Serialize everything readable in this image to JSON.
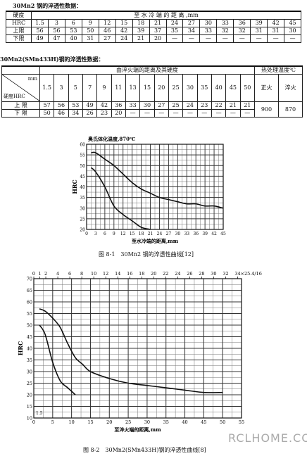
{
  "table1": {
    "title": "30Mn2 钢的淬透性数据：",
    "col_header": "至 水 冷 端 的 距 离 ,mm",
    "hardness_label": "硬度",
    "hrc_label": "HRC",
    "distances": [
      "1.5",
      "3",
      "6",
      "9",
      "12",
      "15",
      "18",
      "21",
      "24",
      "27",
      "30",
      "33",
      "36",
      "39",
      "42",
      "45"
    ],
    "rows": [
      {
        "label": "上限",
        "values": [
          "56",
          "56",
          "53",
          "50",
          "46",
          "42",
          "39",
          "37",
          "35",
          "34",
          "33",
          "32",
          "32",
          "31",
          "31",
          "30"
        ]
      },
      {
        "label": "下限",
        "values": [
          "49",
          "47",
          "40",
          "31",
          "27",
          "24",
          "21",
          "20",
          "—",
          "—",
          "—",
          "—",
          "—",
          "—",
          "—",
          "—"
        ]
      }
    ]
  },
  "table2": {
    "title": "30Mn2(SMn433H)钢的淬透性数据：",
    "col_header": "由淬火端的距离及其硬度",
    "mm_label": "mm",
    "hardness_label": "硬度HRC",
    "heat_header": "热处理温度℃",
    "normalize_label": "正火",
    "quench_label": "淬火",
    "normalize_value": "900",
    "quench_value": "870",
    "distances": [
      "1.5",
      "3",
      "5",
      "7",
      "9",
      "11",
      "13",
      "15",
      "20",
      "25",
      "30",
      "35",
      "40",
      "45",
      "50"
    ],
    "rows": [
      {
        "label": "上 限",
        "values": [
          "57",
          "56",
          "53",
          "49",
          "42",
          "36",
          "33",
          "30",
          "27",
          "25",
          "24",
          "23",
          "22",
          "21",
          "21"
        ]
      },
      {
        "label": "下 限",
        "values": [
          "50",
          "46",
          "34",
          "26",
          "23",
          "20",
          "—",
          "—",
          "—",
          "—",
          "—",
          "—",
          "—",
          "—",
          "—"
        ]
      }
    ]
  },
  "chart_data": [
    {
      "type": "line",
      "title": "奥氏体化温度,870℃",
      "xlabel": "至水冷端的距离,mm",
      "ylabel": "HRC",
      "xlim": [
        0,
        45
      ],
      "ylim": [
        20,
        60
      ],
      "x_ticks": [
        0,
        3,
        6,
        9,
        12,
        15,
        18,
        21,
        24,
        27,
        30,
        33,
        36,
        39,
        42,
        45
      ],
      "y_ticks": [
        20,
        25,
        30,
        35,
        40,
        45,
        50,
        55,
        60
      ],
      "grid": true,
      "series": [
        {
          "x": [
            1.5,
            3,
            6,
            9,
            12,
            15,
            18,
            21,
            24,
            27,
            30,
            33,
            36,
            39,
            42,
            45
          ],
          "values": [
            56,
            56,
            53,
            50,
            46,
            42,
            39,
            37,
            35,
            34,
            33,
            32,
            32,
            31,
            31,
            30
          ]
        },
        {
          "x": [
            1.5,
            3,
            6,
            9,
            12,
            15,
            18,
            21
          ],
          "values": [
            49,
            47,
            40,
            31,
            27,
            24,
            21,
            20
          ]
        }
      ],
      "caption": "图 8-1　30Mn2 钢的淬透性曲线[12]"
    },
    {
      "type": "line",
      "xlabel": "至淬火端的距离,mm",
      "ylabel": "HRC",
      "xlim": [
        0,
        55
      ],
      "ylim": [
        10,
        70
      ],
      "x_ticks": [
        0,
        5,
        10,
        15,
        20,
        25,
        30,
        35,
        40,
        45,
        50,
        55
      ],
      "top_ticks": [
        "0",
        "1",
        "2",
        "4",
        "6",
        "8",
        "10",
        "12",
        "14",
        "16",
        "18",
        "20",
        "22",
        "24",
        "26",
        "28",
        "30",
        "32",
        "34"
      ],
      "top_unit": "×25.4/16",
      "y_ticks": [
        10,
        15,
        20,
        25,
        30,
        35,
        40,
        45,
        50,
        55,
        60,
        65,
        70
      ],
      "corner_label": "1.5",
      "grid": true,
      "series": [
        {
          "x": [
            1.5,
            3,
            5,
            7,
            9,
            11,
            13,
            15,
            20,
            25,
            30,
            35,
            40,
            45,
            50
          ],
          "values": [
            57,
            56,
            53,
            49,
            42,
            36,
            33,
            30,
            27,
            25,
            24,
            23,
            22,
            21,
            21
          ]
        },
        {
          "x": [
            1.5,
            3,
            5,
            7,
            9,
            11
          ],
          "values": [
            50,
            46,
            34,
            26,
            23,
            20
          ]
        }
      ],
      "caption": "图 8-2　30Mn2(SMn433H)钢的淬透性曲线[8]"
    }
  ],
  "watermark": "RCLHOME.COM"
}
